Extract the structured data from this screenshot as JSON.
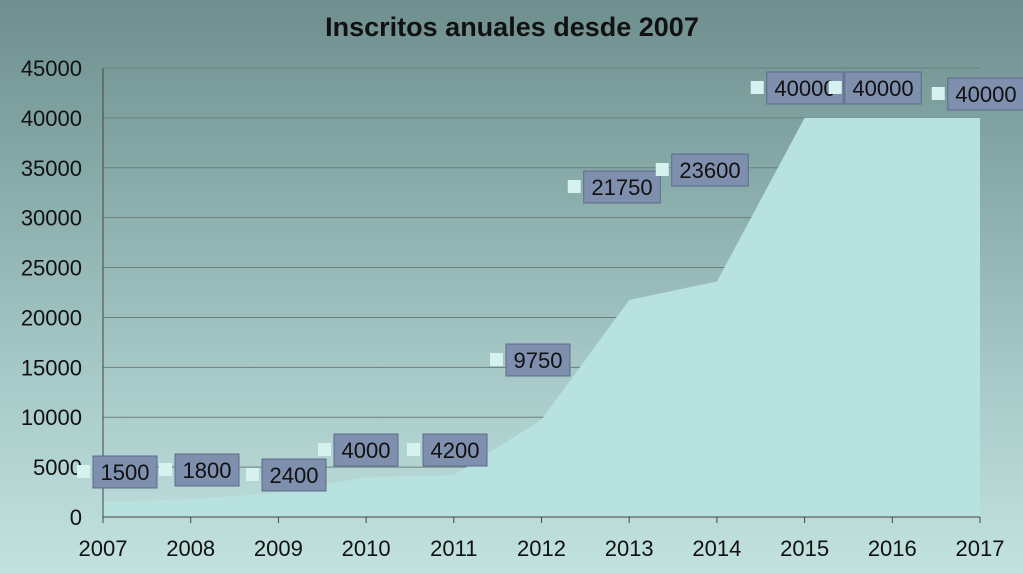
{
  "chart_data": {
    "type": "area",
    "title": "Inscritos anuales desde 2007",
    "categories": [
      "2007",
      "2008",
      "2009",
      "2010",
      "2011",
      "2012",
      "2013",
      "2014",
      "2015",
      "2016",
      "2017"
    ],
    "values": [
      1500,
      1800,
      2400,
      4000,
      4200,
      9750,
      21750,
      23600,
      40000,
      40000,
      40000
    ],
    "data_labels": [
      "1500",
      "1800",
      "2400",
      "4000",
      "4200",
      "9750",
      "21750",
      "23600",
      "40000",
      "40000",
      "40000"
    ],
    "yticks": [
      "0",
      "5000",
      "10000",
      "15000",
      "20000",
      "25000",
      "30000",
      "35000",
      "40000",
      "45000"
    ],
    "ylim": [
      0,
      45000
    ],
    "grid": true,
    "legend": "none",
    "colors": {
      "area": "#b8e2df",
      "label_box": "#7f8fae",
      "marker": "#d6f2ee"
    }
  }
}
